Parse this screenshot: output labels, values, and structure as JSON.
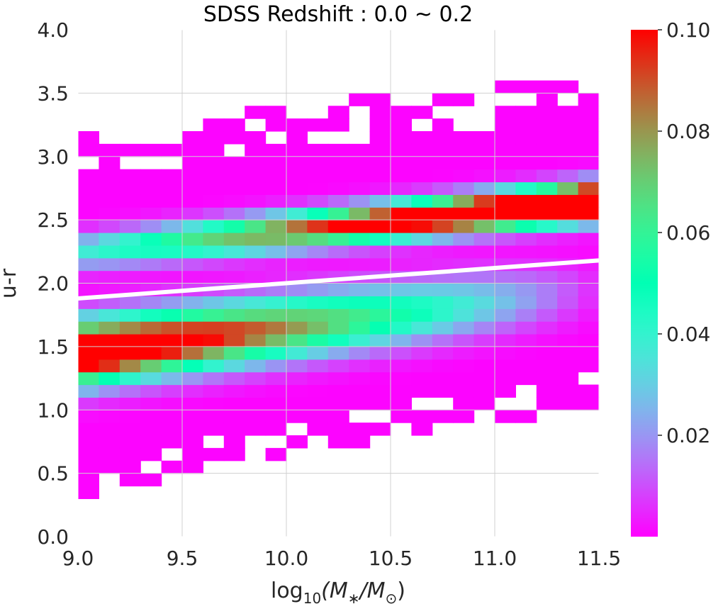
{
  "chart_data": {
    "type": "heatmap",
    "title": "SDSS Redshift : 0.0 ~ 0.2",
    "xlabel": "log10(M*/M☉)",
    "xlabel_parts": {
      "base": "log",
      "sub": "10",
      "body": "(M",
      "star": "∗",
      "mid": "/M",
      "sun": "⊙",
      "end": ")"
    },
    "ylabel": "u-r",
    "xlim": [
      9.0,
      11.5
    ],
    "ylim": [
      0.0,
      4.0
    ],
    "xticks": [
      "9.0",
      "9.5",
      "10.0",
      "10.5",
      "11.0",
      "11.5"
    ],
    "xtick_values": [
      9.0,
      9.5,
      10.0,
      10.5,
      11.0,
      11.5
    ],
    "yticks": [
      "0.0",
      "0.5",
      "1.0",
      "1.5",
      "2.0",
      "2.5",
      "3.0",
      "3.5",
      "4.0"
    ],
    "ytick_values": [
      0.0,
      0.5,
      1.0,
      1.5,
      2.0,
      2.5,
      3.0,
      3.5,
      4.0
    ],
    "colorbar": {
      "colormap": "rainbow",
      "vmin": 0.0,
      "vmax": 0.1,
      "ticks": [
        "0.02",
        "0.04",
        "0.06",
        "0.08",
        "0.10"
      ],
      "tick_values": [
        0.02,
        0.04,
        0.06,
        0.08,
        0.1
      ]
    },
    "grid": true,
    "bins": {
      "x_start": 9.0,
      "x_step": 0.1,
      "nx": 25,
      "y_start": 0.0,
      "y_step": 0.1,
      "ny": 40
    },
    "red_sequence_peak": {
      "x0": 9.0,
      "y0": 2.25,
      "x1": 11.5,
      "y1": 2.65,
      "sigma": 0.1
    },
    "blue_cloud_peak": {
      "x0": 9.0,
      "y0": 1.45,
      "x1": 11.5,
      "y1": 1.95,
      "sigma": 0.17
    },
    "divider_line": {
      "x": [
        9.0,
        11.5
      ],
      "y": [
        1.88,
        2.18
      ],
      "color": "#ffffff"
    },
    "colors": {
      "line": "#ffffff",
      "grid": "#d0d0d0",
      "text": "#262626"
    }
  }
}
